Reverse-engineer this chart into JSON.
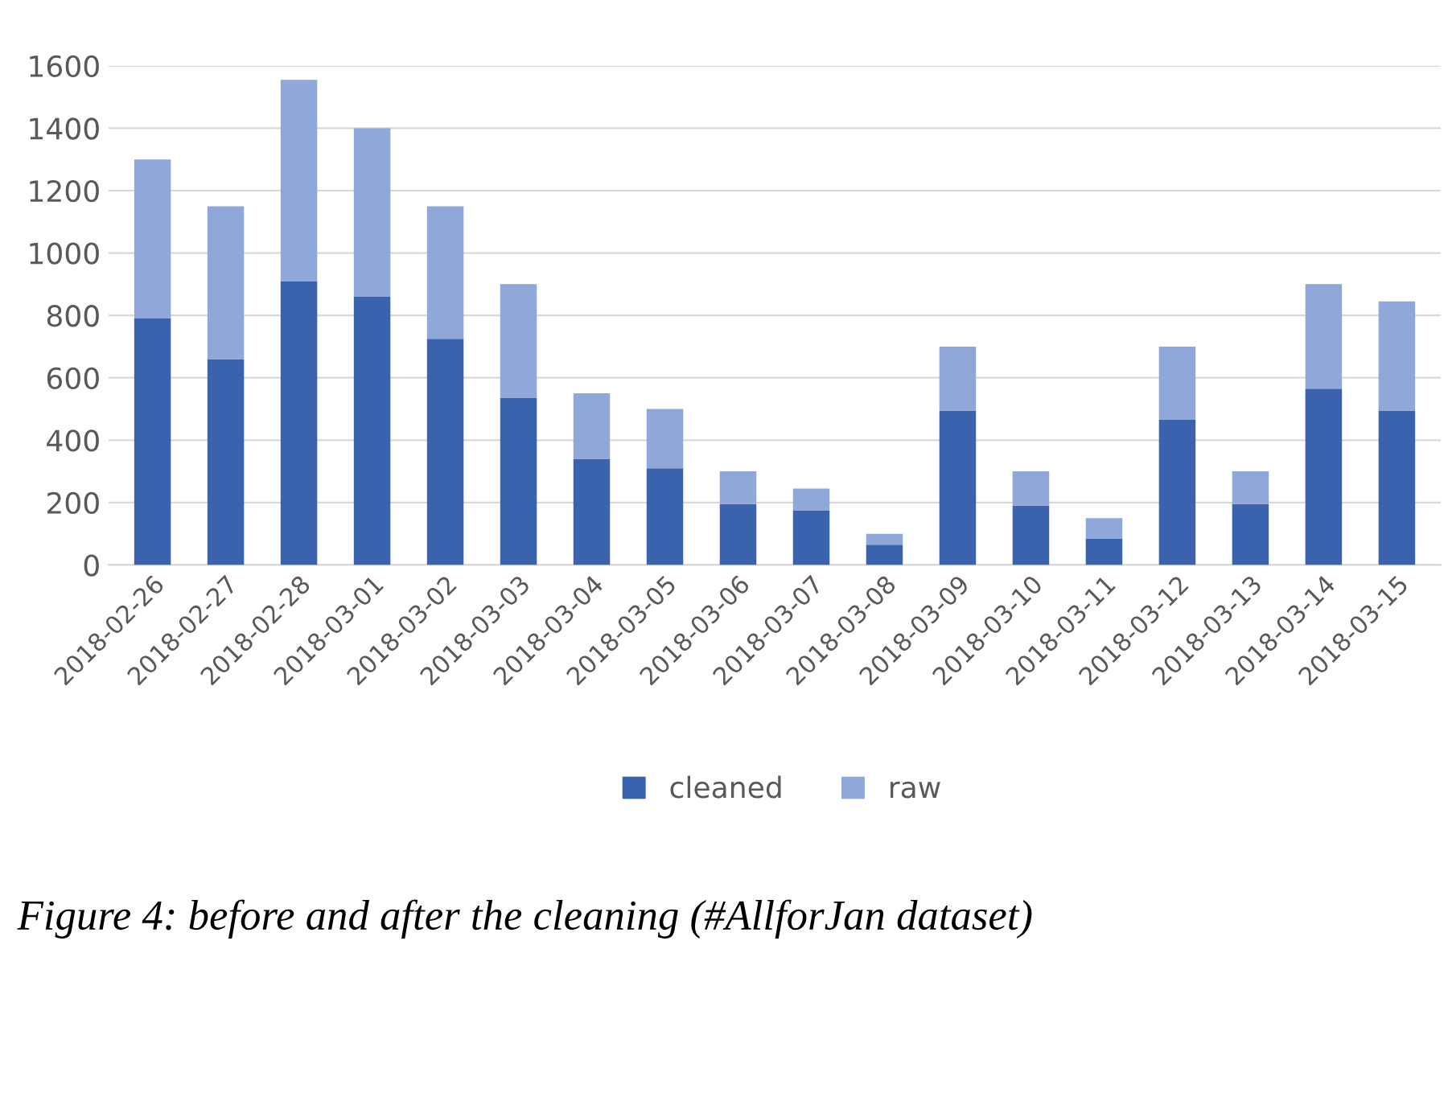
{
  "chart_data": {
    "type": "bar",
    "stacked": true,
    "categories": [
      "2018-02-26",
      "2018-02-27",
      "2018-02-28",
      "2018-03-01",
      "2018-03-02",
      "2018-03-03",
      "2018-03-04",
      "2018-03-05",
      "2018-03-06",
      "2018-03-07",
      "2018-03-08",
      "2018-03-09",
      "2018-03-10",
      "2018-03-11",
      "2018-03-12",
      "2018-03-13",
      "2018-03-14",
      "2018-03-15"
    ],
    "series": [
      {
        "name": "cleaned",
        "color": "#3b63ad",
        "values": [
          790,
          660,
          910,
          860,
          725,
          535,
          340,
          310,
          195,
          175,
          65,
          495,
          190,
          85,
          465,
          195,
          565,
          495
        ]
      },
      {
        "name": "raw",
        "color": "#8fa7d9",
        "values": [
          510,
          490,
          645,
          540,
          425,
          365,
          210,
          190,
          105,
          70,
          35,
          205,
          110,
          65,
          235,
          105,
          335,
          350
        ]
      }
    ],
    "ylim": [
      0,
      1600
    ],
    "yticks": [
      0,
      200,
      400,
      600,
      800,
      1000,
      1200,
      1400,
      1600
    ],
    "grid": "y",
    "legend": "bottom",
    "annotations": [
      "Figure 4: before and after the cleaning (#AllforJan dataset)"
    ]
  }
}
